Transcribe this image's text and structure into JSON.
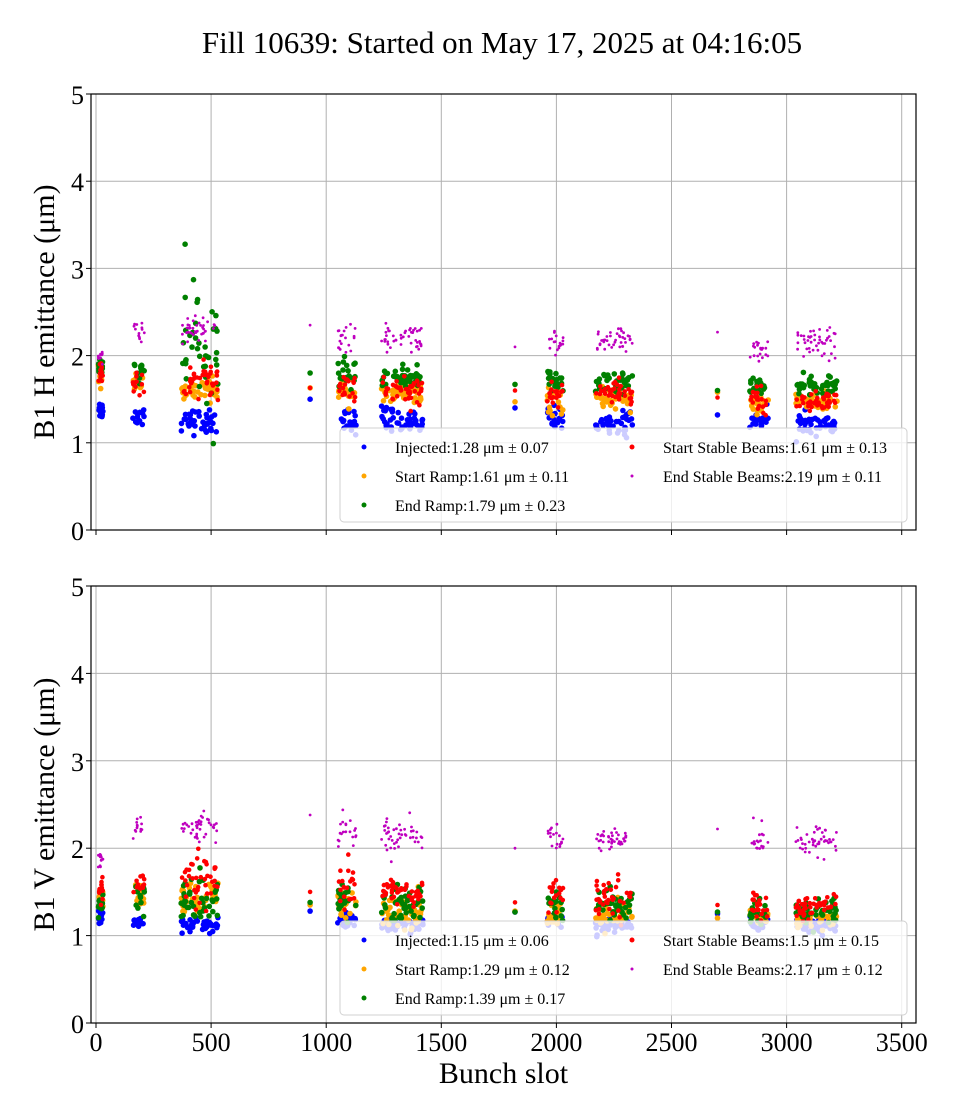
{
  "title": "Fill 10639: Started on May 17, 2025 at 04:16:05",
  "chart_data": [
    {
      "type": "scatter",
      "panel": "top",
      "ylabel": "B1 H emittance (μm)",
      "xlabel": "",
      "xlim": [
        -20,
        3560
      ],
      "ylim": [
        0,
        5
      ],
      "xticks": [
        0,
        500,
        1000,
        1500,
        2000,
        2500,
        3000,
        3500
      ],
      "xtick_labels_visible": false,
      "yticks": [
        0,
        1,
        2,
        3,
        4,
        5
      ],
      "ytick_labels": [
        "0",
        "1",
        "2",
        "3",
        "4",
        "5"
      ],
      "grid": true,
      "legend_placement": "lower-right",
      "series": [
        {
          "name": "Injected",
          "label": "Injected:1.28 μm ± 0.07",
          "mean": 1.28,
          "std": 0.07,
          "color": "#0000ff",
          "marker_size": "large",
          "clusters": [
            [
              10,
              30,
              1.38,
              0.05
            ],
            [
              160,
              210,
              1.3,
              0.06
            ],
            [
              370,
              530,
              1.25,
              0.07
            ],
            [
              930,
              930,
              1.5,
              0
            ],
            [
              1050,
              1130,
              1.25,
              0.07
            ],
            [
              1240,
              1420,
              1.25,
              0.08
            ],
            [
              1820,
              1820,
              1.4,
              0
            ],
            [
              1960,
              2030,
              1.3,
              0.06
            ],
            [
              2170,
              2330,
              1.22,
              0.07
            ],
            [
              2700,
              2700,
              1.32,
              0
            ],
            [
              2840,
              2920,
              1.27,
              0.06
            ],
            [
              3040,
              3220,
              1.22,
              0.06
            ]
          ]
        },
        {
          "name": "Start Ramp",
          "label": "Start Ramp:1.61 μm ± 0.11",
          "mean": 1.61,
          "std": 0.11,
          "color": "#ffa500",
          "marker_size": "large",
          "clusters": [
            [
              10,
              30,
              1.75,
              0.05
            ],
            [
              160,
              210,
              1.68,
              0.05
            ],
            [
              370,
              530,
              1.6,
              0.06
            ],
            [
              930,
              930,
              1.63,
              0
            ],
            [
              1050,
              1130,
              1.62,
              0.08
            ],
            [
              1240,
              1420,
              1.55,
              0.07
            ],
            [
              1820,
              1820,
              1.47,
              0
            ],
            [
              1960,
              2030,
              1.48,
              0.07
            ],
            [
              2170,
              2330,
              1.5,
              0.06
            ],
            [
              2700,
              2700,
              1.58,
              0
            ],
            [
              2840,
              2920,
              1.45,
              0.07
            ],
            [
              3040,
              3220,
              1.48,
              0.06
            ]
          ]
        },
        {
          "name": "End Ramp",
          "label": "End Ramp:1.79 μm ± 0.23",
          "mean": 1.79,
          "std": 0.23,
          "color": "#008000",
          "marker_size": "large",
          "clusters": [
            [
              10,
              30,
              1.85,
              0.05
            ],
            [
              160,
              210,
              1.82,
              0.05
            ],
            [
              370,
              530,
              2.05,
              0.4
            ],
            [
              930,
              930,
              1.8,
              0
            ],
            [
              1050,
              1130,
              1.8,
              0.08
            ],
            [
              1240,
              1420,
              1.75,
              0.06
            ],
            [
              1820,
              1820,
              1.67,
              0
            ],
            [
              1960,
              2030,
              1.7,
              0.07
            ],
            [
              2170,
              2330,
              1.7,
              0.06
            ],
            [
              2700,
              2700,
              1.6,
              0
            ],
            [
              2840,
              2920,
              1.65,
              0.06
            ],
            [
              3040,
              3220,
              1.65,
              0.05
            ]
          ]
        },
        {
          "name": "Start Stable Beams",
          "label": "Start Stable Beams:1.61 μm ± 0.13",
          "mean": 1.61,
          "std": 0.13,
          "color": "#ff0000",
          "marker_size": "medium",
          "clusters": [
            [
              10,
              30,
              1.8,
              0.05
            ],
            [
              160,
              210,
              1.65,
              0.1
            ],
            [
              370,
              530,
              1.7,
              0.1
            ],
            [
              930,
              930,
              1.63,
              0
            ],
            [
              1050,
              1130,
              1.65,
              0.1
            ],
            [
              1240,
              1420,
              1.62,
              0.09
            ],
            [
              1820,
              1820,
              1.6,
              0
            ],
            [
              1960,
              2030,
              1.55,
              0.08
            ],
            [
              2170,
              2330,
              1.58,
              0.07
            ],
            [
              2700,
              2700,
              1.52,
              0
            ],
            [
              2840,
              2920,
              1.5,
              0.07
            ],
            [
              3040,
              3220,
              1.48,
              0.06
            ]
          ]
        },
        {
          "name": "End Stable Beams",
          "label": "End Stable Beams:2.19 μm ± 0.11",
          "mean": 2.19,
          "std": 0.11,
          "color": "#bf00bf",
          "marker_size": "small",
          "clusters": [
            [
              10,
              30,
              1.95,
              0.05
            ],
            [
              160,
              210,
              2.25,
              0.07
            ],
            [
              370,
              530,
              2.28,
              0.08
            ],
            [
              930,
              930,
              2.35,
              0
            ],
            [
              1050,
              1130,
              2.2,
              0.1
            ],
            [
              1240,
              1420,
              2.2,
              0.08
            ],
            [
              1820,
              1820,
              2.1,
              0
            ],
            [
              1960,
              2030,
              2.15,
              0.08
            ],
            [
              2170,
              2330,
              2.15,
              0.07
            ],
            [
              2700,
              2700,
              2.27,
              0
            ],
            [
              2840,
              2920,
              2.1,
              0.1
            ],
            [
              3040,
              3220,
              2.15,
              0.08
            ]
          ]
        }
      ]
    },
    {
      "type": "scatter",
      "panel": "bottom",
      "ylabel": "B1 V emittance (μm)",
      "xlabel": "Bunch slot",
      "xlim": [
        -20,
        3560
      ],
      "ylim": [
        0,
        5
      ],
      "xticks": [
        0,
        500,
        1000,
        1500,
        2000,
        2500,
        3000,
        3500
      ],
      "xtick_labels": [
        "0",
        "500",
        "1000",
        "1500",
        "2000",
        "2500",
        "3000",
        "3500"
      ],
      "yticks": [
        0,
        1,
        2,
        3,
        4,
        5
      ],
      "ytick_labels": [
        "0",
        "1",
        "2",
        "3",
        "4",
        "5"
      ],
      "grid": true,
      "legend_placement": "lower-right",
      "series": [
        {
          "name": "Injected",
          "label": "Injected:1.15 μm ± 0.06",
          "mean": 1.15,
          "std": 0.06,
          "color": "#0000ff",
          "marker_size": "large",
          "clusters": [
            [
              10,
              30,
              1.22,
              0.05
            ],
            [
              160,
              210,
              1.17,
              0.03
            ],
            [
              370,
              530,
              1.12,
              0.04
            ],
            [
              930,
              930,
              1.28,
              0
            ],
            [
              1050,
              1130,
              1.15,
              0.05
            ],
            [
              1240,
              1420,
              1.12,
              0.04
            ],
            [
              1820,
              1820,
              1.27,
              0
            ],
            [
              1960,
              2030,
              1.18,
              0.04
            ],
            [
              2170,
              2330,
              1.12,
              0.04
            ],
            [
              2700,
              2700,
              1.25,
              0
            ],
            [
              2840,
              2920,
              1.15,
              0.04
            ],
            [
              3040,
              3220,
              1.12,
              0.04
            ]
          ]
        },
        {
          "name": "Start Ramp",
          "label": "Start Ramp:1.29 μm ± 0.12",
          "mean": 1.29,
          "std": 0.12,
          "color": "#ffa500",
          "marker_size": "large",
          "clusters": [
            [
              10,
              30,
              1.4,
              0.06
            ],
            [
              160,
              210,
              1.45,
              0.07
            ],
            [
              370,
              530,
              1.4,
              0.1
            ],
            [
              930,
              930,
              1.35,
              0
            ],
            [
              1050,
              1130,
              1.35,
              0.1
            ],
            [
              1240,
              1420,
              1.3,
              0.1
            ],
            [
              1820,
              1820,
              1.28,
              0
            ],
            [
              1960,
              2030,
              1.25,
              0.07
            ],
            [
              2170,
              2330,
              1.22,
              0.08
            ],
            [
              2700,
              2700,
              1.2,
              0
            ],
            [
              2840,
              2920,
              1.18,
              0.06
            ],
            [
              3040,
              3220,
              1.18,
              0.06
            ]
          ]
        },
        {
          "name": "End Ramp",
          "label": "End Ramp:1.39 μm ± 0.17",
          "mean": 1.39,
          "std": 0.17,
          "color": "#008000",
          "marker_size": "large",
          "clusters": [
            [
              10,
              30,
              1.35,
              0.06
            ],
            [
              160,
              210,
              1.45,
              0.1
            ],
            [
              370,
              530,
              1.4,
              0.15
            ],
            [
              930,
              930,
              1.38,
              0
            ],
            [
              1050,
              1130,
              1.4,
              0.12
            ],
            [
              1240,
              1420,
              1.35,
              0.12
            ],
            [
              1820,
              1820,
              1.27,
              0
            ],
            [
              1960,
              2030,
              1.35,
              0.1
            ],
            [
              2170,
              2330,
              1.35,
              0.1
            ],
            [
              2700,
              2700,
              1.27,
              0
            ],
            [
              2840,
              2920,
              1.25,
              0.08
            ],
            [
              3040,
              3220,
              1.25,
              0.07
            ]
          ]
        },
        {
          "name": "Start Stable Beams",
          "label": "Start Stable Beams:1.5 μm ± 0.15",
          "mean": 1.5,
          "std": 0.15,
          "color": "#ff0000",
          "marker_size": "medium",
          "clusters": [
            [
              10,
              30,
              1.5,
              0.08
            ],
            [
              160,
              210,
              1.55,
              0.1
            ],
            [
              370,
              530,
              1.6,
              0.15
            ],
            [
              930,
              930,
              1.5,
              0
            ],
            [
              1050,
              1130,
              1.55,
              0.12
            ],
            [
              1240,
              1420,
              1.5,
              0.1
            ],
            [
              1820,
              1820,
              1.38,
              0
            ],
            [
              1960,
              2030,
              1.45,
              0.1
            ],
            [
              2170,
              2330,
              1.45,
              0.1
            ],
            [
              2700,
              2700,
              1.35,
              0
            ],
            [
              2840,
              2920,
              1.32,
              0.08
            ],
            [
              3040,
              3220,
              1.35,
              0.07
            ]
          ]
        },
        {
          "name": "End Stable Beams",
          "label": "End Stable Beams:2.17 μm ± 0.12",
          "mean": 2.17,
          "std": 0.12,
          "color": "#bf00bf",
          "marker_size": "small",
          "clusters": [
            [
              10,
              30,
              1.88,
              0.05
            ],
            [
              160,
              210,
              2.25,
              0.08
            ],
            [
              370,
              530,
              2.25,
              0.07
            ],
            [
              930,
              930,
              2.38,
              0
            ],
            [
              1050,
              1130,
              2.2,
              0.1
            ],
            [
              1240,
              1420,
              2.15,
              0.09
            ],
            [
              1820,
              1820,
              2.0,
              0
            ],
            [
              1960,
              2030,
              2.15,
              0.08
            ],
            [
              2170,
              2330,
              2.12,
              0.08
            ],
            [
              2700,
              2700,
              2.22,
              0
            ],
            [
              2840,
              2920,
              2.1,
              0.09
            ],
            [
              3040,
              3220,
              2.08,
              0.09
            ]
          ]
        }
      ]
    }
  ]
}
